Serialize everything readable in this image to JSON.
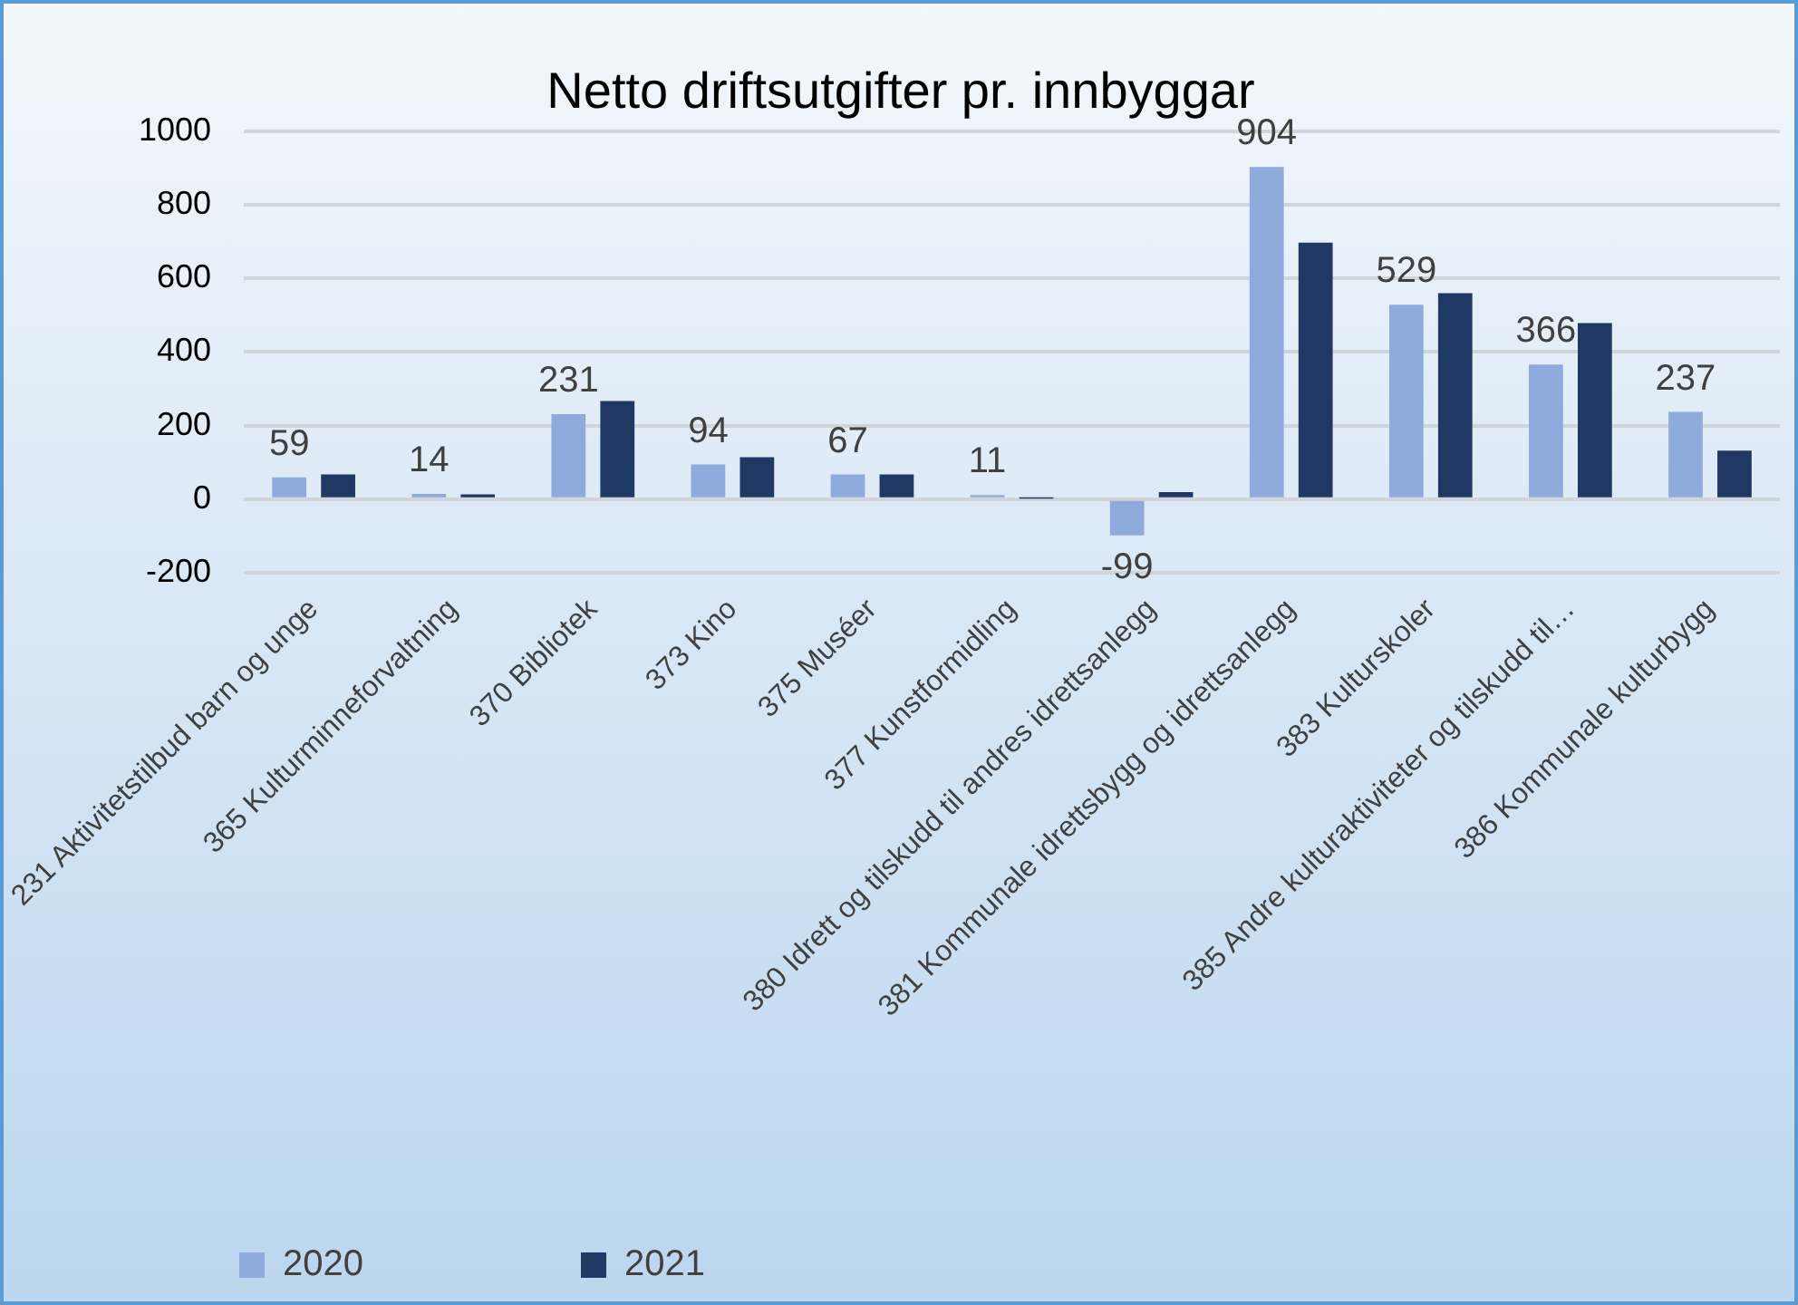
{
  "chart_data": {
    "type": "bar",
    "title": "Netto driftsutgifter pr. innbyggar",
    "categories": [
      "231 Aktivitetstilbud barn og unge",
      "365 Kulturminneforvaltning",
      "370 Bibliotek",
      "373 Kino",
      "375 Muséer",
      "377 Kunstformidling",
      "380 Idrett og tilskudd til andres idrettsanlegg",
      "381 Kommunale idrettsbygg og idrettsanlegg",
      "383 Kulturskoler",
      "385 Andre kulturaktiviteter og tilskudd til…",
      "386 Kommunale kulturbygg"
    ],
    "series": [
      {
        "name": "2020",
        "color": "#8faadc",
        "values": [
          59,
          14,
          231,
          94,
          67,
          11,
          -99,
          904,
          529,
          366,
          237
        ],
        "value_labels": [
          "59",
          "14",
          "231",
          "94",
          "67",
          "11",
          "-99",
          "904",
          "529",
          "366",
          "237"
        ]
      },
      {
        "name": "2021",
        "color": "#203864",
        "values": [
          67,
          13,
          267,
          114,
          67,
          1,
          19,
          698,
          560,
          479,
          132
        ]
      }
    ],
    "ylim": [
      -200,
      1000
    ],
    "yticks": [
      -200,
      0,
      200,
      400,
      600,
      800,
      1000
    ],
    "grid": "y",
    "legend": "bottom left"
  }
}
